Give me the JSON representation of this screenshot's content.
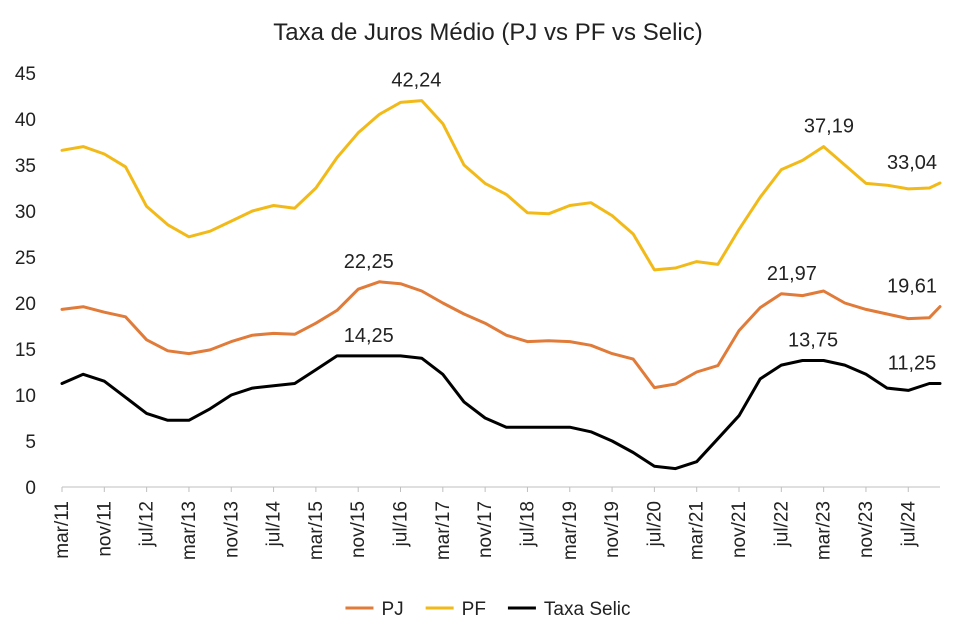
{
  "chart_data": {
    "type": "line",
    "title": "Taxa de Juros Médio (PJ vs PF vs Selic)",
    "xlabel": "",
    "ylabel": "",
    "ylim": [
      0,
      45
    ],
    "yticks": [
      "0",
      "5",
      "10",
      "15",
      "20",
      "25",
      "30",
      "35",
      "40",
      "45"
    ],
    "xlim": [
      "2011-03",
      "2025-01"
    ],
    "xticks": [
      "mar/11",
      "nov/11",
      "jul/12",
      "mar/13",
      "nov/13",
      "jul/14",
      "mar/15",
      "nov/15",
      "jul/16",
      "mar/17",
      "nov/17",
      "jul/18",
      "mar/19",
      "nov/19",
      "jul/20",
      "mar/21",
      "nov/21",
      "jul/22",
      "mar/23",
      "nov/23",
      "jul/24"
    ],
    "legend_position": "bottom",
    "grid": false,
    "series": [
      {
        "name": "PJ",
        "color": "#E07B39",
        "x": [
          "2011-03",
          "2011-07",
          "2011-11",
          "2012-03",
          "2012-07",
          "2012-11",
          "2013-03",
          "2013-07",
          "2013-11",
          "2014-03",
          "2014-07",
          "2014-11",
          "2015-03",
          "2015-07",
          "2015-11",
          "2016-03",
          "2016-07",
          "2016-11",
          "2017-03",
          "2017-07",
          "2017-11",
          "2018-03",
          "2018-07",
          "2018-11",
          "2019-03",
          "2019-07",
          "2019-11",
          "2020-03",
          "2020-07",
          "2020-11",
          "2021-03",
          "2021-07",
          "2021-11",
          "2022-03",
          "2022-07",
          "2022-11",
          "2023-03",
          "2023-07",
          "2023-11",
          "2024-03",
          "2024-07",
          "2024-11",
          "2025-01"
        ],
        "values": [
          19.3,
          19.6,
          19.0,
          18.5,
          16.0,
          14.8,
          14.5,
          14.9,
          15.8,
          16.5,
          16.7,
          16.6,
          17.8,
          19.2,
          21.5,
          22.3,
          22.1,
          21.3,
          20.0,
          18.8,
          17.8,
          16.5,
          15.8,
          15.9,
          15.8,
          15.4,
          14.5,
          13.9,
          10.8,
          11.2,
          12.5,
          13.2,
          17.0,
          19.5,
          21.0,
          20.8,
          21.3,
          20.0,
          19.3,
          18.8,
          18.3,
          18.4,
          19.61
        ],
        "labels": [
          {
            "x": "2016-01",
            "text": "22,25"
          },
          {
            "x": "2022-09",
            "text": "21,97"
          },
          {
            "x": "2025-01",
            "text": "19,61"
          }
        ]
      },
      {
        "name": "PF",
        "color": "#F2BA19",
        "x": [
          "2011-03",
          "2011-07",
          "2011-11",
          "2012-03",
          "2012-07",
          "2012-11",
          "2013-03",
          "2013-07",
          "2013-11",
          "2014-03",
          "2014-07",
          "2014-11",
          "2015-03",
          "2015-07",
          "2015-11",
          "2016-03",
          "2016-07",
          "2016-11",
          "2017-03",
          "2017-07",
          "2017-11",
          "2018-03",
          "2018-07",
          "2018-11",
          "2019-03",
          "2019-07",
          "2019-11",
          "2020-03",
          "2020-07",
          "2020-11",
          "2021-03",
          "2021-07",
          "2021-11",
          "2022-03",
          "2022-07",
          "2022-11",
          "2023-03",
          "2023-07",
          "2023-11",
          "2024-03",
          "2024-07",
          "2024-11",
          "2025-01"
        ],
        "values": [
          36.6,
          37.0,
          36.2,
          34.8,
          30.5,
          28.5,
          27.2,
          27.8,
          28.9,
          30.0,
          30.6,
          30.3,
          32.5,
          35.8,
          38.5,
          40.5,
          41.8,
          42.0,
          39.5,
          35.0,
          33.0,
          31.8,
          29.8,
          29.7,
          30.6,
          30.9,
          29.5,
          27.5,
          23.6,
          23.8,
          24.5,
          24.2,
          28.0,
          31.5,
          34.5,
          35.5,
          37.0,
          35.0,
          33.0,
          32.8,
          32.4,
          32.5,
          33.04
        ],
        "labels": [
          {
            "x": "2016-10",
            "text": "42,24"
          },
          {
            "x": "2023-04",
            "text": "37,19"
          },
          {
            "x": "2025-01",
            "text": "33,04"
          }
        ]
      },
      {
        "name": "Taxa Selic",
        "color": "#000000",
        "x": [
          "2011-03",
          "2011-07",
          "2011-11",
          "2012-03",
          "2012-07",
          "2012-11",
          "2013-03",
          "2013-07",
          "2013-11",
          "2014-03",
          "2014-07",
          "2014-11",
          "2015-03",
          "2015-07",
          "2015-11",
          "2016-03",
          "2016-07",
          "2016-11",
          "2017-03",
          "2017-07",
          "2017-11",
          "2018-03",
          "2018-07",
          "2018-11",
          "2019-03",
          "2019-07",
          "2019-11",
          "2020-03",
          "2020-07",
          "2020-11",
          "2021-03",
          "2021-07",
          "2021-11",
          "2022-03",
          "2022-07",
          "2022-11",
          "2023-03",
          "2023-07",
          "2023-11",
          "2024-03",
          "2024-07",
          "2024-11",
          "2025-01"
        ],
        "values": [
          11.25,
          12.25,
          11.5,
          9.75,
          8.0,
          7.25,
          7.25,
          8.5,
          10.0,
          10.75,
          11.0,
          11.25,
          12.75,
          14.25,
          14.25,
          14.25,
          14.25,
          14.0,
          12.25,
          9.25,
          7.5,
          6.5,
          6.5,
          6.5,
          6.5,
          6.0,
          5.0,
          3.75,
          2.25,
          2.0,
          2.75,
          5.25,
          7.75,
          11.75,
          13.25,
          13.75,
          13.75,
          13.25,
          12.25,
          10.75,
          10.5,
          11.25,
          11.25
        ],
        "labels": [
          {
            "x": "2016-01",
            "text": "14,25"
          },
          {
            "x": "2023-01",
            "text": "13,75"
          },
          {
            "x": "2025-01",
            "text": "11,25"
          }
        ]
      }
    ]
  }
}
